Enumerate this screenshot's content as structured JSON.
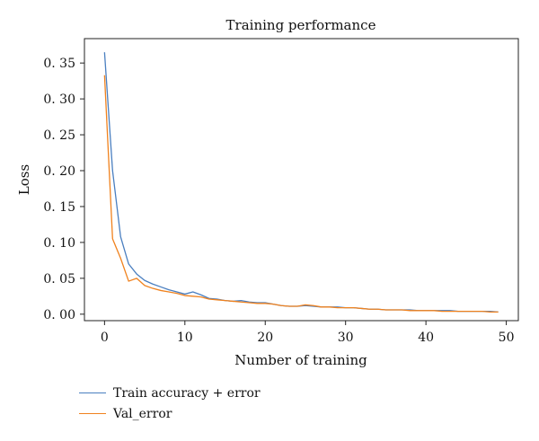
{
  "chart_data": {
    "type": "line",
    "title": "Training performance",
    "xlabel": "Number of training",
    "ylabel": "Loss",
    "xlim": [
      -2.5,
      51.5
    ],
    "ylim": [
      -0.009,
      0.384
    ],
    "x_ticks": [
      0,
      10,
      20,
      30,
      40,
      50
    ],
    "x_tick_labels": [
      "0",
      "10",
      "20",
      "30",
      "40",
      "50"
    ],
    "y_ticks": [
      0.0,
      0.05,
      0.1,
      0.15,
      0.2,
      0.25,
      0.3,
      0.35
    ],
    "y_tick_labels": [
      "0. 00",
      "0. 05",
      "0. 10",
      "0. 15",
      "0. 20",
      "0. 25",
      "0. 30",
      "0. 35"
    ],
    "grid": false,
    "legend_position": "below-left",
    "series": [
      {
        "name": "Train accuracy + error",
        "color": "#4a7fc0",
        "x": [
          0,
          1,
          2,
          3,
          4,
          5,
          6,
          7,
          8,
          9,
          10,
          11,
          12,
          13,
          14,
          15,
          16,
          17,
          18,
          19,
          20,
          21,
          22,
          23,
          24,
          25,
          26,
          27,
          28,
          29,
          30,
          31,
          32,
          33,
          34,
          35,
          36,
          37,
          38,
          39,
          40,
          41,
          42,
          43,
          44,
          45,
          46,
          47,
          48,
          49
        ],
        "values": [
          0.365,
          0.2,
          0.108,
          0.07,
          0.056,
          0.047,
          0.042,
          0.038,
          0.034,
          0.031,
          0.028,
          0.031,
          0.027,
          0.022,
          0.021,
          0.019,
          0.018,
          0.019,
          0.017,
          0.016,
          0.016,
          0.014,
          0.012,
          0.011,
          0.011,
          0.012,
          0.011,
          0.01,
          0.01,
          0.01,
          0.009,
          0.009,
          0.008,
          0.007,
          0.007,
          0.006,
          0.006,
          0.006,
          0.006,
          0.005,
          0.005,
          0.005,
          0.005,
          0.005,
          0.004,
          0.004,
          0.004,
          0.004,
          0.004,
          0.003
        ]
      },
      {
        "name": "Val_error",
        "color": "#f0821e",
        "x": [
          0,
          1,
          2,
          3,
          4,
          5,
          6,
          7,
          8,
          9,
          10,
          11,
          12,
          13,
          14,
          15,
          16,
          17,
          18,
          19,
          20,
          21,
          22,
          23,
          24,
          25,
          26,
          27,
          28,
          29,
          30,
          31,
          32,
          33,
          34,
          35,
          36,
          37,
          38,
          39,
          40,
          41,
          42,
          43,
          44,
          45,
          46,
          47,
          48,
          49
        ],
        "values": [
          0.333,
          0.105,
          0.078,
          0.046,
          0.05,
          0.04,
          0.036,
          0.033,
          0.031,
          0.029,
          0.026,
          0.025,
          0.024,
          0.021,
          0.02,
          0.019,
          0.018,
          0.017,
          0.016,
          0.015,
          0.015,
          0.014,
          0.012,
          0.011,
          0.011,
          0.013,
          0.012,
          0.01,
          0.01,
          0.009,
          0.009,
          0.009,
          0.008,
          0.007,
          0.007,
          0.006,
          0.006,
          0.006,
          0.005,
          0.005,
          0.005,
          0.005,
          0.004,
          0.004,
          0.004,
          0.004,
          0.004,
          0.004,
          0.003,
          0.003
        ]
      }
    ]
  }
}
